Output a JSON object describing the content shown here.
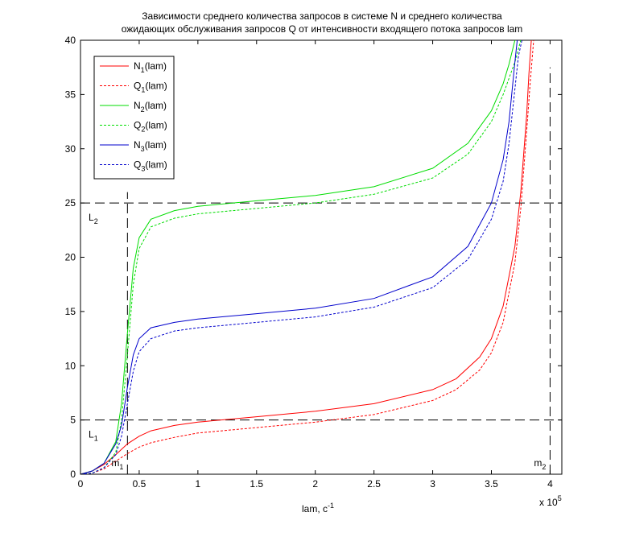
{
  "chart_data": {
    "type": "line",
    "title_line1": "Зависимости среднего количества запросов в системе N и среднего количества",
    "title_line2": "ожидающих обслуживания запросов Q от интенсивности входящего потока запросов lam",
    "xlabel_main": "lam, c",
    "xlabel_sup": "-1",
    "x_multiplier_base": "x 10",
    "x_multiplier_exp": "5",
    "xlim": [
      0,
      4.1
    ],
    "ylim": [
      0,
      40
    ],
    "x_ticks": [
      "0",
      "0.5",
      "1",
      "1.5",
      "2",
      "2.5",
      "3",
      "3.5",
      "4"
    ],
    "x_tick_values": [
      0,
      0.5,
      1,
      1.5,
      2,
      2.5,
      3,
      3.5,
      4
    ],
    "y_ticks": [
      "0",
      "5",
      "10",
      "15",
      "20",
      "25",
      "30",
      "35",
      "40"
    ],
    "y_tick_values": [
      0,
      5,
      10,
      15,
      20,
      25,
      30,
      35,
      40
    ],
    "grid": false,
    "legend_position": "top-left",
    "series": [
      {
        "name": "N",
        "sub": "1",
        "suffix": "(lam)",
        "color": "#ff0000",
        "dash": false,
        "x": [
          0,
          0.1,
          0.2,
          0.3,
          0.4,
          0.5,
          0.6,
          0.8,
          1.0,
          1.5,
          2.0,
          2.5,
          3.0,
          3.2,
          3.4,
          3.5,
          3.6,
          3.7,
          3.75,
          3.8,
          3.82,
          3.84
        ],
        "y": [
          0,
          0.3,
          0.9,
          1.8,
          2.8,
          3.5,
          4.0,
          4.5,
          4.8,
          5.3,
          5.8,
          6.5,
          7.8,
          8.8,
          10.8,
          12.5,
          15.5,
          21.0,
          26.0,
          33.0,
          37.0,
          40.0
        ]
      },
      {
        "name": "Q",
        "sub": "1",
        "suffix": "(lam)",
        "color": "#ff0000",
        "dash": true,
        "x": [
          0,
          0.1,
          0.2,
          0.3,
          0.4,
          0.5,
          0.6,
          0.8,
          1.0,
          1.5,
          2.0,
          2.5,
          3.0,
          3.2,
          3.4,
          3.5,
          3.6,
          3.7,
          3.75,
          3.8,
          3.83,
          3.86
        ],
        "y": [
          0,
          0.1,
          0.5,
          1.2,
          1.9,
          2.5,
          2.9,
          3.4,
          3.8,
          4.3,
          4.8,
          5.5,
          6.8,
          7.8,
          9.6,
          11.2,
          14.0,
          19.5,
          24.5,
          31.5,
          36.0,
          40.0
        ]
      },
      {
        "name": "N",
        "sub": "2",
        "suffix": "(lam)",
        "color": "#00dd00",
        "dash": false,
        "x": [
          0,
          0.1,
          0.2,
          0.3,
          0.35,
          0.4,
          0.45,
          0.5,
          0.6,
          0.8,
          1.0,
          1.5,
          2.0,
          2.5,
          3.0,
          3.3,
          3.5,
          3.6,
          3.65,
          3.7,
          3.72,
          3.75
        ],
        "y": [
          0,
          0.3,
          1.0,
          3.0,
          6.5,
          13.0,
          19.0,
          21.8,
          23.5,
          24.3,
          24.7,
          25.2,
          25.7,
          26.5,
          28.2,
          30.5,
          33.5,
          36.0,
          37.8,
          40.0,
          41.0,
          42.0
        ]
      },
      {
        "name": "Q",
        "sub": "2",
        "suffix": "(lam)",
        "color": "#00dd00",
        "dash": true,
        "x": [
          0,
          0.1,
          0.2,
          0.3,
          0.35,
          0.4,
          0.45,
          0.5,
          0.6,
          0.8,
          1.0,
          1.5,
          2.0,
          2.5,
          3.0,
          3.3,
          3.5,
          3.6,
          3.7,
          3.75,
          3.78
        ],
        "y": [
          0,
          0.1,
          0.6,
          2.0,
          5.0,
          11.0,
          17.5,
          20.8,
          22.8,
          23.6,
          24.0,
          24.5,
          25.0,
          25.8,
          27.3,
          29.5,
          32.5,
          35.0,
          38.0,
          40.0,
          41.0
        ]
      },
      {
        "name": "N",
        "sub": "3",
        "suffix": "(lam)",
        "color": "#0000cc",
        "dash": false,
        "x": [
          0,
          0.1,
          0.2,
          0.3,
          0.35,
          0.4,
          0.45,
          0.5,
          0.6,
          0.8,
          1.0,
          1.5,
          2.0,
          2.5,
          3.0,
          3.3,
          3.5,
          3.6,
          3.65,
          3.7,
          3.72,
          3.74
        ],
        "y": [
          0,
          0.3,
          1.0,
          2.8,
          4.5,
          8.0,
          11.0,
          12.5,
          13.5,
          14.0,
          14.3,
          14.8,
          15.3,
          16.2,
          18.2,
          21.0,
          25.0,
          29.0,
          32.5,
          38.0,
          40.0,
          41.0
        ]
      },
      {
        "name": "Q",
        "sub": "3",
        "suffix": "(lam)",
        "color": "#0000cc",
        "dash": true,
        "x": [
          0,
          0.1,
          0.2,
          0.3,
          0.35,
          0.4,
          0.45,
          0.5,
          0.6,
          0.8,
          1.0,
          1.5,
          2.0,
          2.5,
          3.0,
          3.3,
          3.5,
          3.6,
          3.65,
          3.7,
          3.73,
          3.76
        ],
        "y": [
          0,
          0.1,
          0.6,
          1.8,
          3.5,
          6.5,
          9.5,
          11.3,
          12.5,
          13.2,
          13.5,
          14.0,
          14.5,
          15.4,
          17.2,
          19.8,
          23.5,
          27.0,
          30.5,
          35.5,
          38.5,
          40.0
        ]
      }
    ],
    "reference_lines": [
      {
        "label": "L",
        "sub": "1",
        "orientation": "horizontal",
        "value": 5
      },
      {
        "label": "L",
        "sub": "2",
        "orientation": "horizontal",
        "value": 25
      },
      {
        "label": "m",
        "sub": "1",
        "orientation": "vertical",
        "value": 0.4
      },
      {
        "label": "m",
        "sub": "2",
        "orientation": "vertical",
        "value": 4.0
      }
    ]
  }
}
